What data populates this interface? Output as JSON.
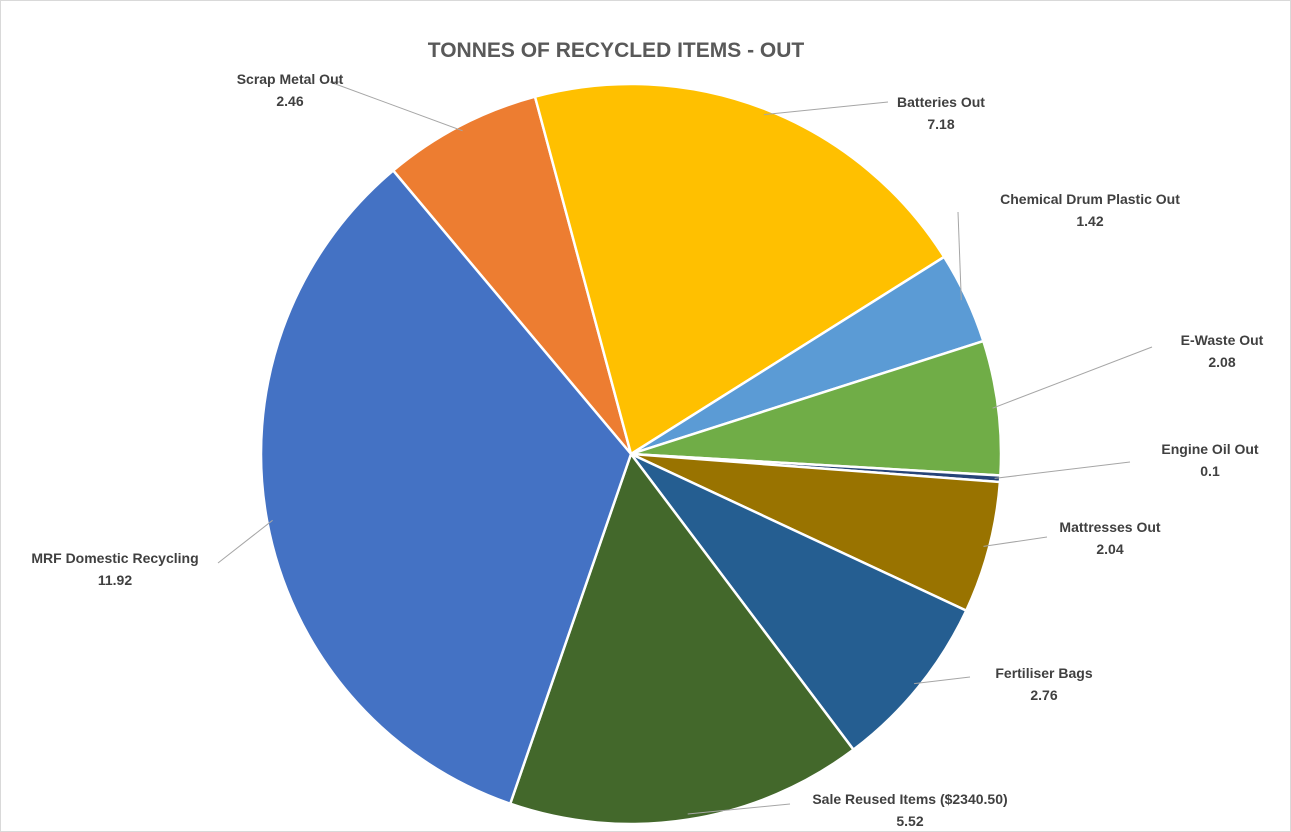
{
  "chart_data": {
    "type": "pie",
    "title": "TONNES OF RECYCLED ITEMS - OUT",
    "legend": "none",
    "data_labels": "category and value, outside with leader lines",
    "slices": [
      {
        "label": "Scrap Metal Out",
        "value": 2.46,
        "value_text": "2.46",
        "color": "#ED7D31"
      },
      {
        "label": "Batteries Out",
        "value": 7.18,
        "value_text": "7.18",
        "color": "#FFC000"
      },
      {
        "label": "Chemical Drum Plastic Out",
        "value": 1.42,
        "value_text": "1.42",
        "color": "#5B9BD5"
      },
      {
        "label": "E-Waste Out",
        "value": 2.08,
        "value_text": "2.08",
        "color": "#70AD47"
      },
      {
        "label": "Engine Oil Out",
        "value": 0.1,
        "value_text": "0.1",
        "color": "#264478"
      },
      {
        "label": "Mattresses Out",
        "value": 2.04,
        "value_text": "2.04",
        "color": "#997300"
      },
      {
        "label": "Fertiliser Bags",
        "value": 2.76,
        "value_text": "2.76",
        "color": "#255E91"
      },
      {
        "label": "Sale Reused Items ($2340.50)",
        "value": 5.52,
        "value_text": "5.52",
        "color": "#43682B"
      },
      {
        "label": "MRF Domestic Recycling",
        "value": 11.92,
        "value_text": "11.92",
        "color": "#4472C4"
      }
    ]
  }
}
